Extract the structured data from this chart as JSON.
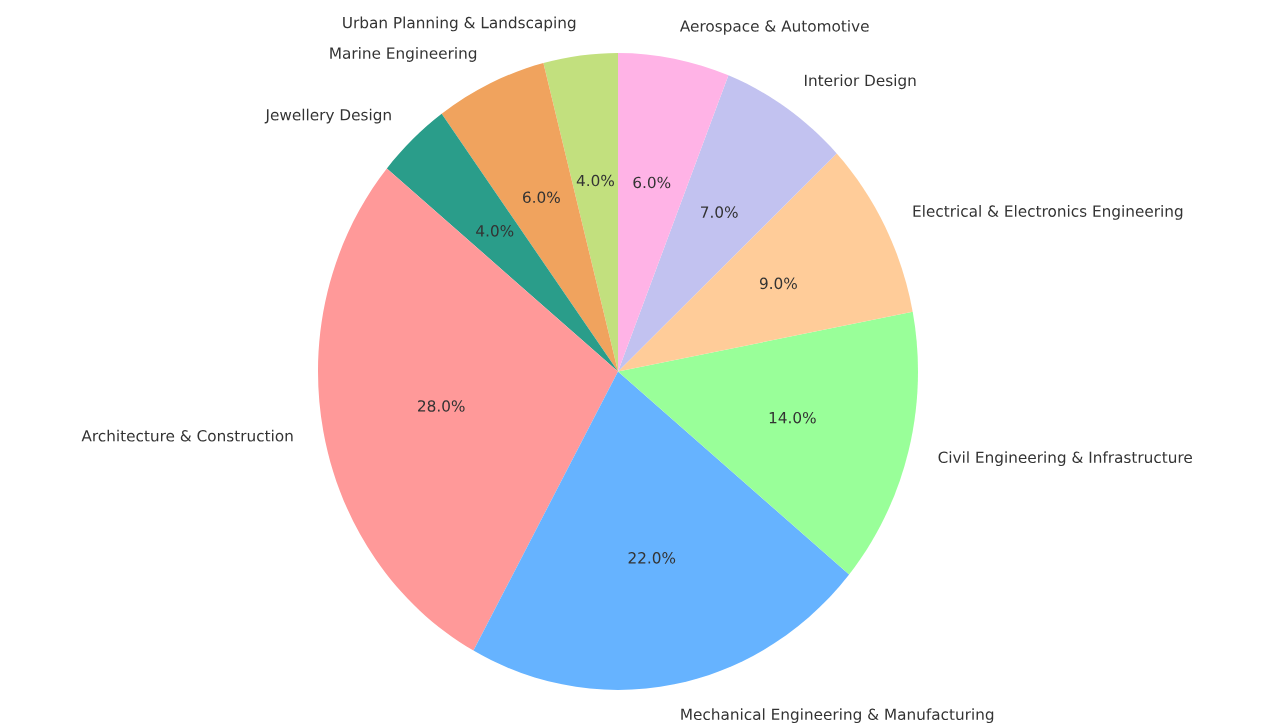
{
  "chart_data": {
    "type": "pie",
    "categories": [
      "Urban Planning & Landscaping",
      "Marine Engineering",
      "Jewellery Design",
      "Architecture & Construction",
      "Mechanical Engineering & Manufacturing",
      "Civil Engineering & Infrastructure",
      "Electrical & Electronics Engineering",
      "Interior Design",
      "Aerospace & Automotive"
    ],
    "values": [
      4,
      6,
      4,
      28,
      22,
      14,
      9,
      7,
      6
    ],
    "value_labels": [
      "4.0%",
      "6.0%",
      "4.0%",
      "28.0%",
      "22.0%",
      "14.0%",
      "9.0%",
      "7.0%",
      "6.0%"
    ],
    "colors": [
      "#c2e07e",
      "#f0a35e",
      "#2a9d8a",
      "#ff9999",
      "#66b3ff",
      "#99ff99",
      "#ffcc99",
      "#c2c2f0",
      "#ffb3e6"
    ],
    "legend": false
  }
}
